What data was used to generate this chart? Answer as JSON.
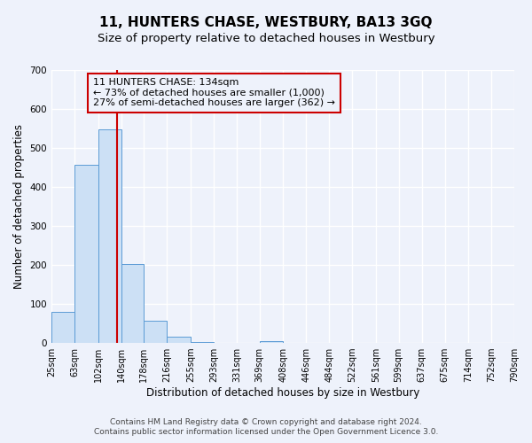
{
  "title": "11, HUNTERS CHASE, WESTBURY, BA13 3GQ",
  "subtitle": "Size of property relative to detached houses in Westbury",
  "xlabel": "Distribution of detached houses by size in Westbury",
  "ylabel": "Number of detached properties",
  "bar_edges": [
    25,
    63,
    102,
    140,
    178,
    216,
    255,
    293,
    331,
    369,
    408,
    446,
    484,
    522,
    561,
    599,
    637,
    675,
    714,
    752,
    790
  ],
  "bar_heights": [
    80,
    458,
    548,
    202,
    58,
    15,
    2,
    0,
    0,
    5,
    0,
    0,
    0,
    0,
    0,
    0,
    0,
    0,
    0,
    0
  ],
  "tick_labels": [
    "25sqm",
    "63sqm",
    "102sqm",
    "140sqm",
    "178sqm",
    "216sqm",
    "255sqm",
    "293sqm",
    "331sqm",
    "369sqm",
    "408sqm",
    "446sqm",
    "484sqm",
    "522sqm",
    "561sqm",
    "599sqm",
    "637sqm",
    "675sqm",
    "714sqm",
    "752sqm",
    "790sqm"
  ],
  "vline_x": 134,
  "bar_color": "#cce0f5",
  "bar_edgecolor": "#5b9bd5",
  "vline_color": "#cc0000",
  "annotation_text": "11 HUNTERS CHASE: 134sqm\n← 73% of detached houses are smaller (1,000)\n27% of semi-detached houses are larger (362) →",
  "annotation_box_edgecolor": "#cc0000",
  "ylim": [
    0,
    700
  ],
  "yticks": [
    0,
    100,
    200,
    300,
    400,
    500,
    600,
    700
  ],
  "footer_line1": "Contains HM Land Registry data © Crown copyright and database right 2024.",
  "footer_line2": "Contains public sector information licensed under the Open Government Licence 3.0.",
  "background_color": "#eef2fb",
  "grid_color": "#ffffff",
  "title_fontsize": 11,
  "subtitle_fontsize": 9.5,
  "axis_label_fontsize": 8.5,
  "tick_fontsize": 7,
  "annotation_fontsize": 8,
  "footer_fontsize": 6.5
}
